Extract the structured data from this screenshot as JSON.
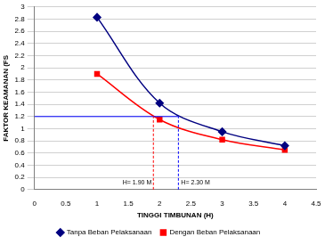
{
  "chart_data": {
    "type": "line",
    "x_label": "TINGGI TIMBUNAN (H)",
    "y_label": "FAKTOR KEAMANAN (FS",
    "series": [
      {
        "name": "Tanpa Beban Pelaksanaan",
        "color": "#000080",
        "marker": "diamond",
        "x": [
          1,
          2,
          3,
          4
        ],
        "values": [
          2.83,
          1.42,
          0.95,
          0.72
        ]
      },
      {
        "name": "Dengan Beban Pelaksanaan",
        "color": "#ff0000",
        "marker": "square",
        "x": [
          1,
          2,
          3,
          4
        ],
        "values": [
          1.9,
          1.15,
          0.82,
          0.65
        ]
      }
    ],
    "xlim": [
      0,
      4.5
    ],
    "xticks": [
      0,
      0.5,
      1,
      1.5,
      2,
      2.5,
      3,
      3.5,
      4,
      4.5
    ],
    "ylim": [
      0,
      3
    ],
    "yticks": [
      0,
      0.2,
      0.4,
      0.6,
      0.8,
      1,
      1.2,
      1.4,
      1.6,
      1.8,
      2,
      2.2,
      2.4,
      2.6,
      2.8,
      3
    ],
    "grid": true,
    "legend": "bottom",
    "annotations": [
      {
        "type": "hline",
        "y": 1.2,
        "x": [
          0,
          2.3
        ],
        "color": "#0000ff",
        "line_style": "solid"
      },
      {
        "type": "vline",
        "x": 1.9,
        "y": [
          0,
          1.2
        ],
        "color": "#ff0000",
        "line_style": "dashed",
        "label": "H= 1.90 M"
      },
      {
        "type": "vline",
        "x": 2.3,
        "y": [
          0,
          1.2
        ],
        "color": "#0000ff",
        "line_style": "dashed",
        "label": "H= 2.30 M"
      }
    ]
  }
}
